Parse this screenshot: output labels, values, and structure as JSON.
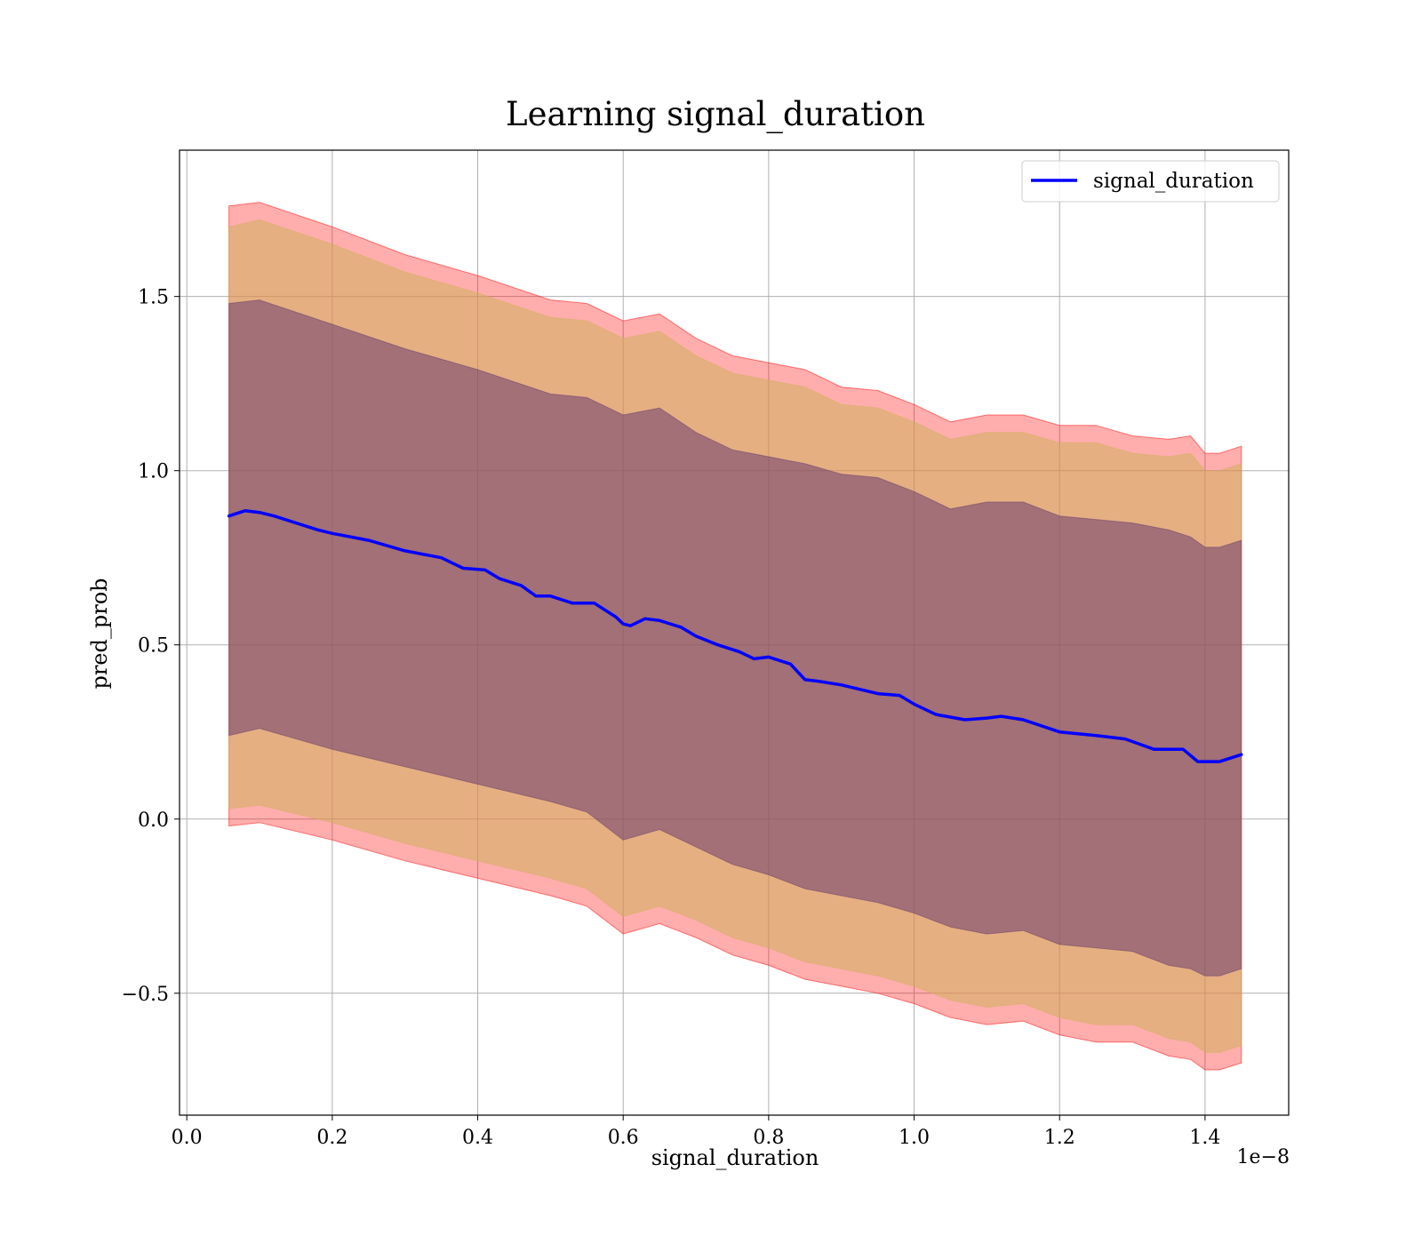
{
  "chart_data": {
    "type": "line",
    "title": "Learning signal_duration",
    "xlabel": "signal_duration",
    "ylabel": "pred_prob",
    "x_offset_label": "1e−8",
    "xlim": [
      -0.01,
      1.515
    ],
    "ylim": [
      -0.85,
      1.92
    ],
    "xticks": [
      0.0,
      0.2,
      0.4,
      0.6,
      0.8,
      1.0,
      1.2,
      1.4
    ],
    "xtick_labels": [
      "0.0",
      "0.2",
      "0.4",
      "0.6",
      "0.8",
      "1.0",
      "1.2",
      "1.4"
    ],
    "yticks": [
      -0.5,
      0.0,
      0.5,
      1.0,
      1.5
    ],
    "ytick_labels": [
      "−0.5",
      "0.0",
      "0.5",
      "1.0",
      "1.5"
    ],
    "grid": true,
    "legend_position": "top-right",
    "colors": {
      "line": "#0000ff",
      "band_outer": "#ff0000",
      "band_middle": "#d2b15e",
      "band_inner": "#6a3d6e"
    },
    "series": [
      {
        "name": "signal_duration",
        "x": [
          0.058,
          0.08,
          0.1,
          0.12,
          0.15,
          0.18,
          0.2,
          0.25,
          0.3,
          0.35,
          0.38,
          0.41,
          0.43,
          0.46,
          0.48,
          0.5,
          0.53,
          0.56,
          0.59,
          0.6,
          0.61,
          0.63,
          0.65,
          0.68,
          0.7,
          0.73,
          0.76,
          0.78,
          0.8,
          0.83,
          0.85,
          0.87,
          0.9,
          0.93,
          0.95,
          0.98,
          1.0,
          1.03,
          1.07,
          1.1,
          1.12,
          1.15,
          1.2,
          1.25,
          1.29,
          1.33,
          1.37,
          1.39,
          1.42,
          1.45
        ],
        "y": [
          0.87,
          0.885,
          0.88,
          0.87,
          0.85,
          0.83,
          0.82,
          0.8,
          0.77,
          0.75,
          0.72,
          0.715,
          0.69,
          0.67,
          0.64,
          0.64,
          0.62,
          0.62,
          0.58,
          0.56,
          0.555,
          0.575,
          0.57,
          0.55,
          0.525,
          0.5,
          0.48,
          0.46,
          0.465,
          0.445,
          0.4,
          0.395,
          0.385,
          0.37,
          0.36,
          0.355,
          0.33,
          0.3,
          0.285,
          0.29,
          0.295,
          0.285,
          0.25,
          0.24,
          0.23,
          0.2,
          0.2,
          0.165,
          0.165,
          0.185
        ]
      }
    ],
    "bands": [
      {
        "level": "outer",
        "x": [
          0.058,
          0.1,
          0.2,
          0.3,
          0.4,
          0.5,
          0.55,
          0.6,
          0.65,
          0.7,
          0.75,
          0.8,
          0.85,
          0.9,
          0.95,
          1.0,
          1.05,
          1.1,
          1.15,
          1.2,
          1.25,
          1.3,
          1.35,
          1.38,
          1.4,
          1.42,
          1.45
        ],
        "upper": [
          1.76,
          1.77,
          1.7,
          1.62,
          1.56,
          1.49,
          1.48,
          1.43,
          1.45,
          1.38,
          1.33,
          1.31,
          1.29,
          1.24,
          1.23,
          1.19,
          1.14,
          1.16,
          1.16,
          1.13,
          1.13,
          1.1,
          1.09,
          1.1,
          1.05,
          1.05,
          1.07
        ],
        "lower": [
          -0.02,
          -0.01,
          -0.06,
          -0.12,
          -0.17,
          -0.22,
          -0.25,
          -0.33,
          -0.3,
          -0.34,
          -0.39,
          -0.42,
          -0.46,
          -0.48,
          -0.5,
          -0.53,
          -0.57,
          -0.59,
          -0.58,
          -0.62,
          -0.64,
          -0.64,
          -0.68,
          -0.69,
          -0.72,
          -0.72,
          -0.7
        ]
      },
      {
        "level": "middle",
        "x": [
          0.058,
          0.1,
          0.2,
          0.3,
          0.4,
          0.5,
          0.55,
          0.6,
          0.65,
          0.7,
          0.75,
          0.8,
          0.85,
          0.9,
          0.95,
          1.0,
          1.05,
          1.1,
          1.15,
          1.2,
          1.25,
          1.3,
          1.35,
          1.38,
          1.4,
          1.42,
          1.45
        ],
        "upper": [
          1.7,
          1.72,
          1.65,
          1.57,
          1.51,
          1.44,
          1.43,
          1.38,
          1.4,
          1.33,
          1.28,
          1.26,
          1.24,
          1.19,
          1.18,
          1.14,
          1.09,
          1.11,
          1.11,
          1.08,
          1.08,
          1.05,
          1.04,
          1.05,
          1.0,
          1.0,
          1.02
        ],
        "lower": [
          0.03,
          0.04,
          -0.01,
          -0.07,
          -0.12,
          -0.17,
          -0.2,
          -0.28,
          -0.25,
          -0.29,
          -0.34,
          -0.37,
          -0.41,
          -0.43,
          -0.45,
          -0.48,
          -0.52,
          -0.54,
          -0.53,
          -0.57,
          -0.59,
          -0.59,
          -0.63,
          -0.64,
          -0.67,
          -0.67,
          -0.65
        ]
      },
      {
        "level": "inner",
        "x": [
          0.058,
          0.1,
          0.2,
          0.3,
          0.4,
          0.5,
          0.55,
          0.6,
          0.65,
          0.7,
          0.75,
          0.8,
          0.85,
          0.9,
          0.95,
          1.0,
          1.05,
          1.1,
          1.15,
          1.2,
          1.25,
          1.3,
          1.35,
          1.38,
          1.4,
          1.42,
          1.45
        ],
        "upper": [
          1.48,
          1.49,
          1.42,
          1.35,
          1.29,
          1.22,
          1.21,
          1.16,
          1.18,
          1.11,
          1.06,
          1.04,
          1.02,
          0.99,
          0.98,
          0.94,
          0.89,
          0.91,
          0.91,
          0.87,
          0.86,
          0.85,
          0.83,
          0.81,
          0.78,
          0.78,
          0.8
        ],
        "lower": [
          0.24,
          0.26,
          0.2,
          0.15,
          0.1,
          0.05,
          0.02,
          -0.06,
          -0.03,
          -0.08,
          -0.13,
          -0.16,
          -0.2,
          -0.22,
          -0.24,
          -0.27,
          -0.31,
          -0.33,
          -0.32,
          -0.36,
          -0.37,
          -0.38,
          -0.42,
          -0.43,
          -0.45,
          -0.45,
          -0.43
        ]
      }
    ]
  }
}
